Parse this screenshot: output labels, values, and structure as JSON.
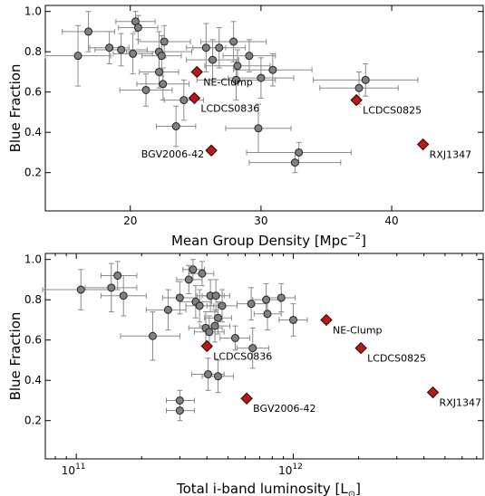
{
  "chart_data": [
    {
      "type": "scatter",
      "xlabel": "Mean Group Density [Mpc",
      "xlabel_sup": "−2",
      "xlabel_end": "]",
      "ylabel": "Blue Fraction",
      "xlim": [
        13.5,
        47
      ],
      "ylim": [
        0.01,
        1.03
      ],
      "x_scale": "linear",
      "x_ticks": [
        20,
        30,
        40
      ],
      "x_ticklabels": [
        "20",
        "30",
        "40"
      ],
      "y_ticks": [
        0.2,
        0.4,
        0.6,
        0.8,
        1.0
      ],
      "y_ticklabels": [
        "0.2",
        "0.4",
        "0.6",
        "0.8",
        "1.0"
      ],
      "groups": [
        {
          "x": 16.8,
          "y": 0.9,
          "xerr": 2.0,
          "yerr": 0.1
        },
        {
          "x": 16.0,
          "y": 0.78,
          "xerr": 2.5,
          "yerr": 0.15
        },
        {
          "x": 18.4,
          "y": 0.82,
          "xerr": 1.5,
          "yerr": 0.08
        },
        {
          "x": 19.3,
          "y": 0.81,
          "xerr": 2.0,
          "yerr": 0.08
        },
        {
          "x": 20.4,
          "y": 0.95,
          "xerr": 1.5,
          "yerr": 0.05
        },
        {
          "x": 20.6,
          "y": 0.92,
          "xerr": 1.5,
          "yerr": 0.06
        },
        {
          "x": 20.2,
          "y": 0.79,
          "xerr": 1.5,
          "yerr": 0.1
        },
        {
          "x": 22.2,
          "y": 0.8,
          "xerr": 2.5,
          "yerr": 0.1
        },
        {
          "x": 22.6,
          "y": 0.85,
          "xerr": 2.0,
          "yerr": 0.08
        },
        {
          "x": 22.4,
          "y": 0.78,
          "xerr": 1.5,
          "yerr": 0.1
        },
        {
          "x": 25.8,
          "y": 0.82,
          "xerr": 1.5,
          "yerr": 0.12
        },
        {
          "x": 26.8,
          "y": 0.82,
          "xerr": 2.0,
          "yerr": 0.1
        },
        {
          "x": 27.9,
          "y": 0.85,
          "xerr": 2.5,
          "yerr": 0.1
        },
        {
          "x": 26.3,
          "y": 0.76,
          "xerr": 2.0,
          "yerr": 0.1
        },
        {
          "x": 29.1,
          "y": 0.78,
          "xerr": 2.0,
          "yerr": 0.08
        },
        {
          "x": 28.2,
          "y": 0.73,
          "xerr": 2.5,
          "yerr": 0.08
        },
        {
          "x": 30.9,
          "y": 0.71,
          "xerr": 3.0,
          "yerr": 0.08
        },
        {
          "x": 22.2,
          "y": 0.7,
          "xerr": 1.5,
          "yerr": 0.08
        },
        {
          "x": 22.5,
          "y": 0.64,
          "xerr": 2.0,
          "yerr": 0.08
        },
        {
          "x": 21.2,
          "y": 0.61,
          "xerr": 2.0,
          "yerr": 0.08
        },
        {
          "x": 24.1,
          "y": 0.56,
          "xerr": 1.5,
          "yerr": 0.1
        },
        {
          "x": 28.1,
          "y": 0.66,
          "xerr": 3.0,
          "yerr": 0.1
        },
        {
          "x": 30.0,
          "y": 0.67,
          "xerr": 2.5,
          "yerr": 0.1
        },
        {
          "x": 38.0,
          "y": 0.66,
          "xerr": 4.0,
          "yerr": 0.08
        },
        {
          "x": 37.5,
          "y": 0.62,
          "xerr": 3.0,
          "yerr": 0.08
        },
        {
          "x": 23.5,
          "y": 0.43,
          "xerr": 1.5,
          "yerr": 0.1
        },
        {
          "x": 29.8,
          "y": 0.42,
          "xerr": 2.5,
          "yerr": 0.12
        },
        {
          "x": 32.9,
          "y": 0.3,
          "xerr": 4.0,
          "yerr": 0.05
        },
        {
          "x": 32.6,
          "y": 0.25,
          "xerr": 3.5,
          "yerr": 0.05
        }
      ],
      "clusters": [
        {
          "name": "NE-Clump",
          "x": 25.1,
          "y": 0.7,
          "label_pos": "below-right"
        },
        {
          "name": "LCDCS0836",
          "x": 24.9,
          "y": 0.57,
          "label_pos": "below-right"
        },
        {
          "name": "LCDCS0825",
          "x": 37.3,
          "y": 0.56,
          "label_pos": "below-right"
        },
        {
          "name": "BGV2006-42",
          "x": 26.2,
          "y": 0.31,
          "label_pos": "below-left"
        },
        {
          "name": "RXJ1347",
          "x": 42.4,
          "y": 0.34,
          "label_pos": "below-right"
        }
      ]
    },
    {
      "type": "scatter",
      "xlabel": "Total i-band luminosity [L",
      "xlabel_sub": "⊙",
      "xlabel_end": "]",
      "ylabel": "Blue Fraction",
      "x_scale": "log",
      "xlim": [
        72000000000.0,
        7500000000000.0
      ],
      "ylim": [
        0.01,
        1.03
      ],
      "x_ticks": [
        100000000000.0,
        1000000000000.0
      ],
      "x_ticklabels_base": [
        "10",
        "10"
      ],
      "x_ticklabels_exp": [
        "11",
        "12"
      ],
      "y_ticks": [
        0.2,
        0.4,
        0.6,
        0.8,
        1.0
      ],
      "y_ticklabels": [
        "0.2",
        "0.4",
        "0.6",
        "0.8",
        "1.0"
      ],
      "groups": [
        {
          "x": 105000000000.0,
          "y": 0.85,
          "xlo": 70000000000.0,
          "xhi": 145000000000.0,
          "yerr": 0.1
        },
        {
          "x": 145000000000.0,
          "y": 0.86,
          "xlo": 110000000000.0,
          "xhi": 190000000000.0,
          "yerr": 0.12
        },
        {
          "x": 155000000000.0,
          "y": 0.92,
          "xlo": 130000000000.0,
          "xhi": 190000000000.0,
          "yerr": 0.07
        },
        {
          "x": 165000000000.0,
          "y": 0.82,
          "xlo": 130000000000.0,
          "xhi": 210000000000.0,
          "yerr": 0.1
        },
        {
          "x": 225000000000.0,
          "y": 0.62,
          "xlo": 160000000000.0,
          "xhi": 300000000000.0,
          "yerr": 0.12
        },
        {
          "x": 265000000000.0,
          "y": 0.75,
          "xlo": 210000000000.0,
          "xhi": 320000000000.0,
          "yerr": 0.1
        },
        {
          "x": 300000000000.0,
          "y": 0.81,
          "xlo": 250000000000.0,
          "xhi": 360000000000.0,
          "yerr": 0.08
        },
        {
          "x": 330000000000.0,
          "y": 0.9,
          "xlo": 290000000000.0,
          "xhi": 380000000000.0,
          "yerr": 0.07
        },
        {
          "x": 345000000000.0,
          "y": 0.95,
          "xlo": 310000000000.0,
          "xhi": 390000000000.0,
          "yerr": 0.05
        },
        {
          "x": 355000000000.0,
          "y": 0.79,
          "xlo": 300000000000.0,
          "xhi": 420000000000.0,
          "yerr": 0.08
        },
        {
          "x": 370000000000.0,
          "y": 0.77,
          "xlo": 320000000000.0,
          "xhi": 430000000000.0,
          "yerr": 0.08
        },
        {
          "x": 380000000000.0,
          "y": 0.93,
          "xlo": 330000000000.0,
          "xhi": 430000000000.0,
          "yerr": 0.06
        },
        {
          "x": 415000000000.0,
          "y": 0.82,
          "xlo": 360000000000.0,
          "xhi": 480000000000.0,
          "yerr": 0.08
        },
        {
          "x": 440000000000.0,
          "y": 0.82,
          "xlo": 380000000000.0,
          "xhi": 510000000000.0,
          "yerr": 0.08
        },
        {
          "x": 470000000000.0,
          "y": 0.77,
          "xlo": 400000000000.0,
          "xhi": 550000000000.0,
          "yerr": 0.08
        },
        {
          "x": 395000000000.0,
          "y": 0.66,
          "xlo": 330000000000.0,
          "xhi": 470000000000.0,
          "yerr": 0.08
        },
        {
          "x": 410000000000.0,
          "y": 0.64,
          "xlo": 350000000000.0,
          "xhi": 480000000000.0,
          "yerr": 0.08
        },
        {
          "x": 435000000000.0,
          "y": 0.67,
          "xlo": 370000000000.0,
          "xhi": 510000000000.0,
          "yerr": 0.08
        },
        {
          "x": 450000000000.0,
          "y": 0.71,
          "xlo": 390000000000.0,
          "xhi": 520000000000.0,
          "yerr": 0.08
        },
        {
          "x": 540000000000.0,
          "y": 0.61,
          "xlo": 460000000000.0,
          "xhi": 630000000000.0,
          "yerr": 0.06
        },
        {
          "x": 640000000000.0,
          "y": 0.78,
          "xlo": 550000000000.0,
          "xhi": 750000000000.0,
          "yerr": 0.08
        },
        {
          "x": 650000000000.0,
          "y": 0.56,
          "xlo": 550000000000.0,
          "xhi": 770000000000.0,
          "yerr": 0.1
        },
        {
          "x": 750000000000.0,
          "y": 0.8,
          "xlo": 650000000000.0,
          "xhi": 870000000000.0,
          "yerr": 0.08
        },
        {
          "x": 760000000000.0,
          "y": 0.73,
          "xlo": 660000000000.0,
          "xhi": 880000000000.0,
          "yerr": 0.08
        },
        {
          "x": 880000000000.0,
          "y": 0.81,
          "xlo": 760000000000.0,
          "xhi": 1020000000000.0,
          "yerr": 0.07
        },
        {
          "x": 1000000000000.0,
          "y": 0.7,
          "xlo": 860000000000.0,
          "xhi": 1160000000000.0,
          "yerr": 0.08
        },
        {
          "x": 405000000000.0,
          "y": 0.43,
          "xlo": 340000000000.0,
          "xhi": 480000000000.0,
          "yerr": 0.08
        },
        {
          "x": 450000000000.0,
          "y": 0.42,
          "xlo": 380000000000.0,
          "xhi": 530000000000.0,
          "yerr": 0.08
        },
        {
          "x": 300000000000.0,
          "y": 0.3,
          "xlo": 260000000000.0,
          "xhi": 350000000000.0,
          "yerr": 0.05
        },
        {
          "x": 300000000000.0,
          "y": 0.25,
          "xlo": 260000000000.0,
          "xhi": 350000000000.0,
          "yerr": 0.05
        }
      ],
      "clusters": [
        {
          "name": "NE-Clump",
          "x": 1420000000000.0,
          "y": 0.7,
          "label_pos": "below-right"
        },
        {
          "name": "LCDCS0836",
          "x": 400000000000.0,
          "y": 0.57,
          "label_pos": "below-right"
        },
        {
          "name": "LCDCS0825",
          "x": 2050000000000.0,
          "y": 0.56,
          "label_pos": "below-right"
        },
        {
          "name": "BGV2006-42",
          "x": 610000000000.0,
          "y": 0.31,
          "label_pos": "below-right"
        },
        {
          "name": "RXJ1347",
          "x": 4400000000000.0,
          "y": 0.34,
          "label_pos": "below-right"
        }
      ]
    }
  ],
  "colors": {
    "group_fill": "#808080",
    "group_edge": "#222222",
    "errorbar": "#8a8a8a",
    "cluster_fill": "#b51a1a",
    "cluster_edge": "#3a0000",
    "axis": "#000000",
    "background": "#ffffff"
  }
}
